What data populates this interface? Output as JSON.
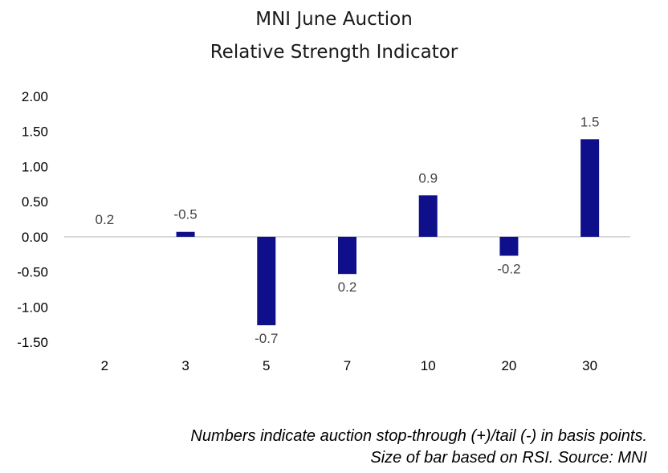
{
  "chart_data": {
    "type": "bar",
    "title": "MNI June Auction",
    "subtitle": "Relative Strength Indicator",
    "categories": [
      "2",
      "3",
      "5",
      "7",
      "10",
      "20",
      "30"
    ],
    "values": [
      0.0,
      0.07,
      -1.26,
      -0.53,
      0.59,
      -0.27,
      1.39
    ],
    "data_labels": [
      "0.2",
      "-0.5",
      "-0.7",
      "0.2",
      "0.9",
      "-0.2",
      "1.5"
    ],
    "ylim": [
      -1.5,
      2.0
    ],
    "yticks": [
      "2.00",
      "1.50",
      "1.00",
      "0.50",
      "0.00",
      "-0.50",
      "-1.00",
      "-1.50"
    ],
    "xlabel": "",
    "ylabel": "",
    "grid": false,
    "legend": "none",
    "bar_color": "#0F0F8C",
    "footnote": [
      "Numbers indicate auction stop-through (+)/tail (-) in basis points.",
      "Size of bar based on RSI. Source: MNI"
    ]
  }
}
